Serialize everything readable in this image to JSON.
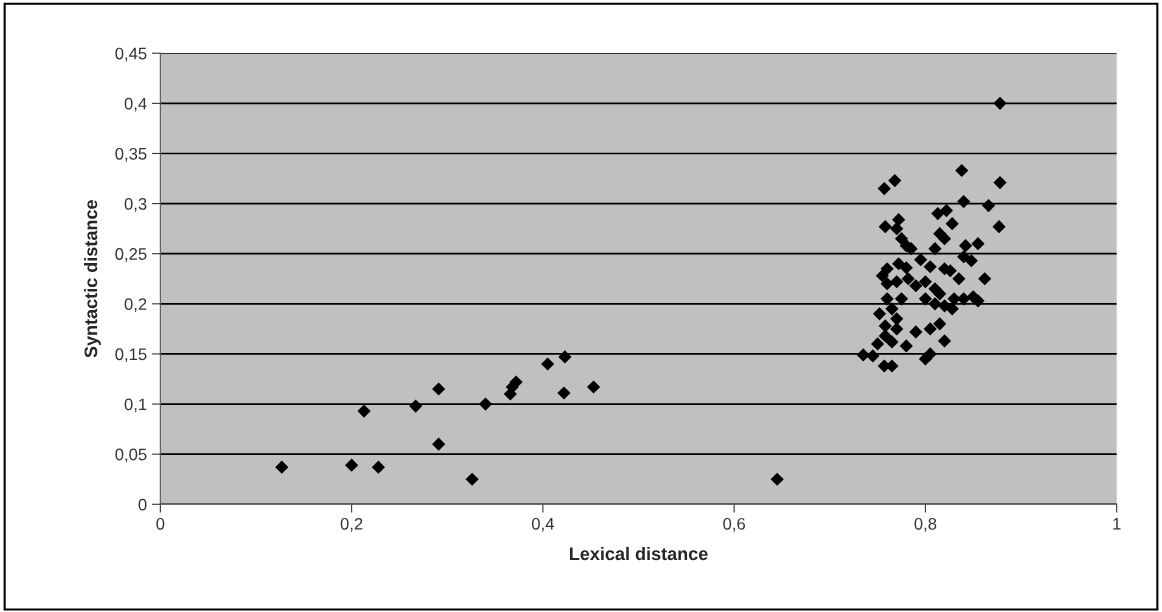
{
  "chart_data": {
    "type": "scatter",
    "xlabel": "Lexical distance",
    "ylabel": "Syntactic distance",
    "x": [
      0.127,
      0.2,
      0.213,
      0.228,
      0.267,
      0.291,
      0.291,
      0.326,
      0.34,
      0.366,
      0.368,
      0.372,
      0.405,
      0.423,
      0.422,
      0.453,
      0.645,
      0.878,
      0.838,
      0.878,
      0.768,
      0.757,
      0.866,
      0.84,
      0.877,
      0.813,
      0.822,
      0.828,
      0.758,
      0.772,
      0.77,
      0.775,
      0.78,
      0.785,
      0.815,
      0.82,
      0.81,
      0.842,
      0.855,
      0.84,
      0.848,
      0.76,
      0.755,
      0.772,
      0.78,
      0.795,
      0.805,
      0.82,
      0.826,
      0.835,
      0.862,
      0.76,
      0.77,
      0.782,
      0.79,
      0.8,
      0.81,
      0.815,
      0.83,
      0.84,
      0.85,
      0.855,
      0.76,
      0.775,
      0.8,
      0.81,
      0.82,
      0.828,
      0.765,
      0.752,
      0.77,
      0.758,
      0.77,
      0.79,
      0.805,
      0.815,
      0.758,
      0.765,
      0.78,
      0.82,
      0.75,
      0.745,
      0.735,
      0.757,
      0.765,
      0.8,
      0.805
    ],
    "values": [
      0.037,
      0.039,
      0.093,
      0.037,
      0.098,
      0.115,
      0.06,
      0.025,
      0.1,
      0.11,
      0.117,
      0.122,
      0.14,
      0.147,
      0.111,
      0.117,
      0.025,
      0.4,
      0.333,
      0.321,
      0.323,
      0.315,
      0.298,
      0.302,
      0.277,
      0.29,
      0.293,
      0.28,
      0.277,
      0.284,
      0.275,
      0.265,
      0.258,
      0.255,
      0.27,
      0.265,
      0.255,
      0.258,
      0.26,
      0.247,
      0.243,
      0.235,
      0.228,
      0.24,
      0.236,
      0.244,
      0.237,
      0.235,
      0.233,
      0.225,
      0.225,
      0.22,
      0.222,
      0.225,
      0.218,
      0.222,
      0.215,
      0.21,
      0.205,
      0.205,
      0.207,
      0.203,
      0.205,
      0.205,
      0.205,
      0.2,
      0.198,
      0.195,
      0.195,
      0.19,
      0.185,
      0.178,
      0.175,
      0.172,
      0.175,
      0.18,
      0.168,
      0.162,
      0.158,
      0.163,
      0.16,
      0.148,
      0.149,
      0.138,
      0.138,
      0.145,
      0.15
    ],
    "color": "#000000",
    "marker": "diamond",
    "xlim": [
      0,
      1
    ],
    "ylim": [
      0,
      0.45
    ],
    "xticks": [
      0,
      {
        "value": 0.2,
        "label": "0,2"
      },
      {
        "value": 0.4,
        "label": "0,4"
      },
      {
        "value": 0.6,
        "label": "0,6"
      },
      {
        "value": 0.8,
        "label": "0,8"
      },
      1
    ],
    "yticks": [
      0,
      {
        "value": 0.05,
        "label": "0,05"
      },
      {
        "value": 0.1,
        "label": "0,1"
      },
      {
        "value": 0.15,
        "label": "0,15"
      },
      {
        "value": 0.2,
        "label": "0,2"
      },
      {
        "value": 0.25,
        "label": "0,25"
      },
      {
        "value": 0.3,
        "label": "0,3"
      },
      {
        "value": 0.35,
        "label": "0,35"
      },
      {
        "value": 0.4,
        "label": "0,4"
      },
      {
        "value": 0.45,
        "label": "0,45"
      }
    ],
    "grid": "y"
  }
}
